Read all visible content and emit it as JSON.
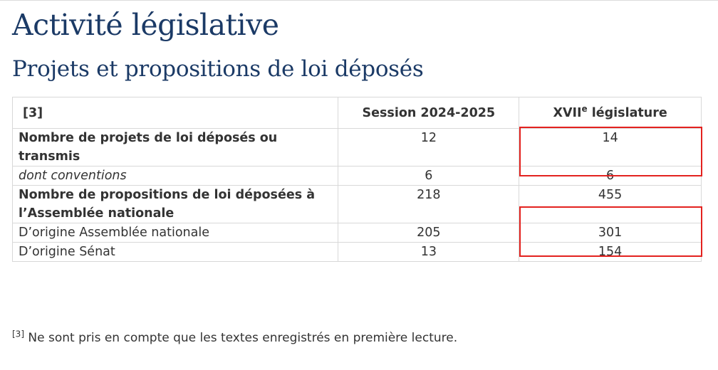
{
  "page": {
    "title": "Activité législative",
    "section_title": "Projets et propositions de loi déposés"
  },
  "table": {
    "header": {
      "label": "[3]",
      "col_session": "Session 2024-2025",
      "col_legislature_roman": "XVII",
      "col_legislature_sup": "e",
      "col_legislature_rest": " législature"
    },
    "rows": [
      {
        "label": "Nombre de projets de loi déposés ou transmis",
        "session": "12",
        "legislature": "14",
        "style": "bold",
        "highlighted": true
      },
      {
        "label": "dont conventions",
        "session": "6",
        "legislature": "6",
        "style": "italic",
        "highlighted": false
      },
      {
        "label": "Nombre de propositions de loi déposées à l’Assemblée nationale",
        "session": "218",
        "legislature": "455",
        "style": "bold",
        "highlighted": true
      },
      {
        "label": "D’origine Assemblée nationale",
        "session": "205",
        "legislature": "301",
        "style": "normal",
        "highlighted": false
      },
      {
        "label": "D’origine Sénat",
        "session": "13",
        "legislature": "154",
        "style": "normal",
        "highlighted": false
      }
    ]
  },
  "footnote": {
    "marker": "[3]",
    "text": " Ne sont pris en compte que les textes enregistrés en première lecture."
  },
  "colors": {
    "title": "#1b3a66",
    "text": "#333333",
    "border": "#d8d8d8",
    "highlight": "#e3221f"
  }
}
